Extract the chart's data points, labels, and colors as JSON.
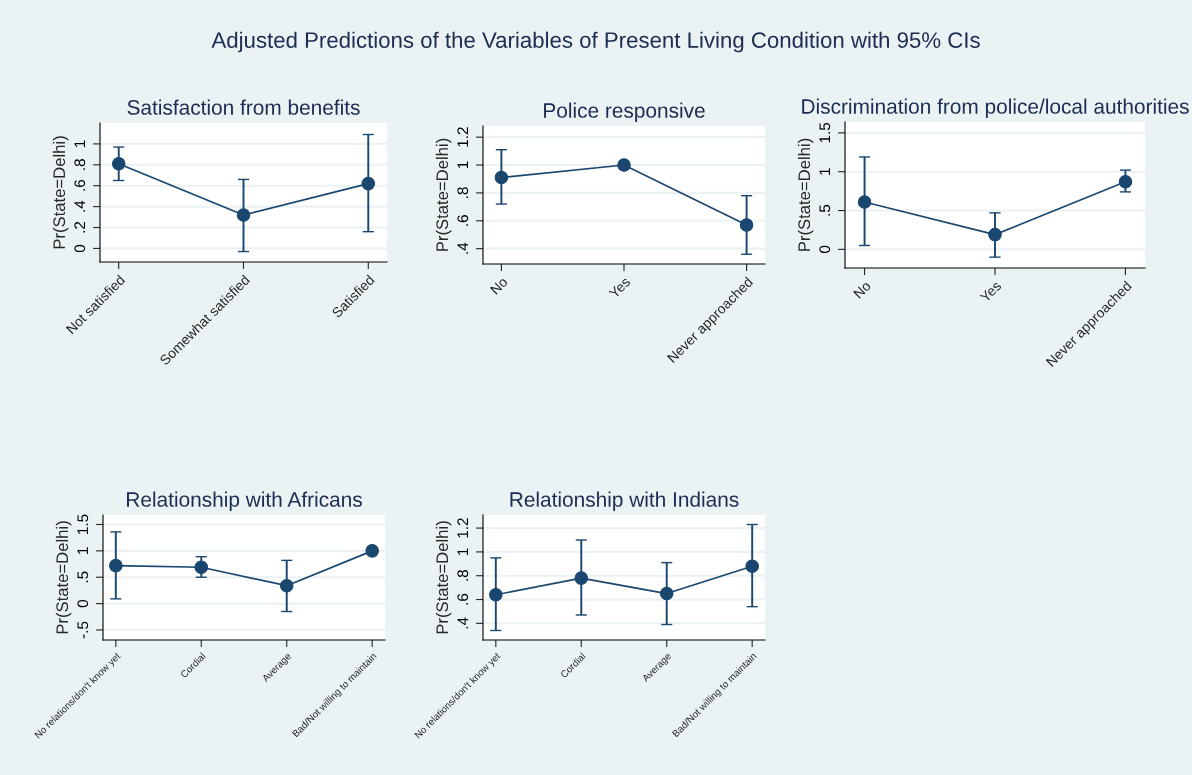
{
  "chart_data": [
    {
      "type": "line",
      "title": "Satisfaction from benefits",
      "ylabel": "Pr(State=Delhi)",
      "annotations": [
        "Adjusted Predictions of the Variables of Present Living Condition with 95% CIs"
      ],
      "categories": [
        "Not satisfied",
        "Somewhat satisfied",
        "Satisfied"
      ],
      "values": [
        0.81,
        0.32,
        0.62
      ],
      "errors": [
        [
          0.65,
          0.97
        ],
        [
          -0.03,
          0.66
        ],
        [
          0.16,
          1.09
        ]
      ],
      "color": "#1a476f",
      "ylim": [
        -0.13,
        1.2
      ],
      "yticks": [
        0,
        {
          "value": 0.2,
          "label": ".2"
        },
        {
          "value": 0.4,
          "label": ".4"
        },
        {
          "value": 0.6,
          "label": ".6"
        },
        {
          "value": 0.8,
          "label": ".8"
        },
        1
      ],
      "grid": "y",
      "marker": "circle"
    },
    {
      "type": "line",
      "title": "Police responsive",
      "ylabel": "Pr(State=Delhi)",
      "categories": [
        "No",
        "Yes",
        "Never approached"
      ],
      "values": [
        0.91,
        1.0,
        0.57
      ],
      "errors": [
        [
          0.72,
          1.11
        ],
        null,
        [
          0.36,
          0.78
        ]
      ],
      "color": "#1a476f",
      "ylim": [
        0.29,
        1.28
      ],
      "yticks": [
        {
          "value": 0.4,
          "label": ".4"
        },
        {
          "value": 0.6,
          "label": ".6"
        },
        {
          "value": 0.8,
          "label": ".8"
        },
        1,
        1.2
      ],
      "grid": "y",
      "marker": "circle"
    },
    {
      "type": "line",
      "title": "Discrimination from police/local authorities",
      "ylabel": "Pr(State=Delhi)",
      "categories": [
        "No",
        "Yes",
        "Never approached"
      ],
      "values": [
        0.61,
        0.19,
        0.87
      ],
      "errors": [
        [
          0.05,
          1.19
        ],
        [
          -0.1,
          0.47
        ],
        [
          0.74,
          1.02
        ]
      ],
      "color": "#1a476f",
      "ylim": [
        -0.24,
        1.64
      ],
      "yticks": [
        0,
        {
          "value": 0.5,
          "label": ".5"
        },
        1,
        1.5
      ],
      "grid": "y",
      "marker": "circle"
    },
    {
      "type": "line",
      "title": "Relationship with Africans",
      "ylabel": "Pr(State=Delhi)",
      "categories": [
        "No relations/don't know yet",
        "Cordial",
        "Average",
        "Bad/Not willing to maintain"
      ],
      "values": [
        0.72,
        0.69,
        0.34,
        1.0
      ],
      "errors": [
        [
          0.09,
          1.36
        ],
        [
          0.5,
          0.89
        ],
        [
          -0.15,
          0.82
        ],
        null
      ],
      "color": "#1a476f",
      "ylim": [
        -0.69,
        1.68
      ],
      "yticks": [
        {
          "value": -0.5,
          "label": "-.5"
        },
        0,
        {
          "value": 0.5,
          "label": ".5"
        },
        1,
        1.5
      ],
      "grid": "y",
      "marker": "circle"
    },
    {
      "type": "line",
      "title": "Relationship with Indians",
      "ylabel": "Pr(State=Delhi)",
      "categories": [
        "No relations/don't know yet",
        "Cordial",
        "Average",
        "Bad/Not willing to maintain"
      ],
      "values": [
        0.64,
        0.78,
        0.65,
        0.88
      ],
      "errors": [
        [
          0.34,
          0.95
        ],
        [
          0.47,
          1.1
        ],
        [
          0.39,
          0.91
        ],
        [
          0.54,
          1.23
        ]
      ],
      "color": "#1a476f",
      "ylim": [
        0.26,
        1.31
      ],
      "yticks": [
        {
          "value": 0.4,
          "label": ".4"
        },
        {
          "value": 0.6,
          "label": ".6"
        },
        {
          "value": 0.8,
          "label": ".8"
        },
        1,
        1.2
      ],
      "grid": "y",
      "marker": "circle"
    }
  ]
}
